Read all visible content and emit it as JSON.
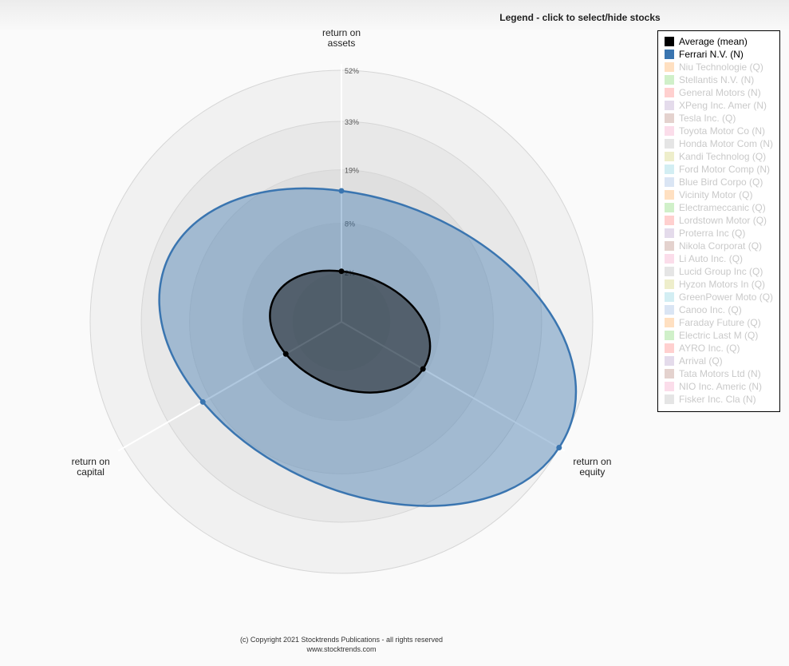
{
  "chart_data": {
    "type": "radar",
    "legend_title": "Legend - click to select/hide stocks",
    "categories": [
      "return on assets",
      "return on equity",
      "return on capital"
    ],
    "rlim": [
      0,
      52
    ],
    "rscale": "sqrt",
    "rticks": [
      {
        "value": 2,
        "label": "2%"
      },
      {
        "value": 8,
        "label": "8%"
      },
      {
        "value": 19,
        "label": "19%"
      },
      {
        "value": 33,
        "label": "33%"
      },
      {
        "value": 52,
        "label": "52%"
      }
    ],
    "series": [
      {
        "name": "Average (mean)",
        "color": "#000000",
        "visible": true,
        "values": [
          2.1,
          7.3,
          3.4
        ]
      },
      {
        "name": "Ferrari N.V. (N)",
        "color": "#3a75b0",
        "visible": true,
        "values": [
          14.1,
          52,
          21.1
        ]
      },
      {
        "name": "Niu Technologie (Q)",
        "color": "#ffbb78",
        "visible": false
      },
      {
        "name": "Stellantis N.V. (N)",
        "color": "#98df8a",
        "visible": false
      },
      {
        "name": "General Motors (N)",
        "color": "#ff9896",
        "visible": false
      },
      {
        "name": "XPeng Inc. Amer (N)",
        "color": "#c5b0d5",
        "visible": false
      },
      {
        "name": "Tesla Inc. (Q)",
        "color": "#c49c94",
        "visible": false
      },
      {
        "name": "Toyota Motor Co (N)",
        "color": "#f7b6d2",
        "visible": false
      },
      {
        "name": "Honda Motor Com (N)",
        "color": "#c7c7c7",
        "visible": false
      },
      {
        "name": "Kandi Technolog (Q)",
        "color": "#dbdb8d",
        "visible": false
      },
      {
        "name": "Ford Motor Comp (N)",
        "color": "#9edae5",
        "visible": false
      },
      {
        "name": "Blue Bird Corpo (Q)",
        "color": "#aec7e8",
        "visible": false
      },
      {
        "name": "Vicinity Motor (Q)",
        "color": "#ffbb78",
        "visible": false
      },
      {
        "name": "Electrameccanic (Q)",
        "color": "#98df8a",
        "visible": false
      },
      {
        "name": "Lordstown Motor (Q)",
        "color": "#ff9896",
        "visible": false
      },
      {
        "name": "Proterra Inc (Q)",
        "color": "#c5b0d5",
        "visible": false
      },
      {
        "name": "Nikola Corporat (Q)",
        "color": "#c49c94",
        "visible": false
      },
      {
        "name": "Li Auto Inc. (Q)",
        "color": "#f7b6d2",
        "visible": false
      },
      {
        "name": "Lucid Group Inc (Q)",
        "color": "#c7c7c7",
        "visible": false
      },
      {
        "name": "Hyzon Motors In (Q)",
        "color": "#dbdb8d",
        "visible": false
      },
      {
        "name": "GreenPower Moto (Q)",
        "color": "#9edae5",
        "visible": false
      },
      {
        "name": "Canoo Inc. (Q)",
        "color": "#aec7e8",
        "visible": false
      },
      {
        "name": "Faraday Future (Q)",
        "color": "#ffbb78",
        "visible": false
      },
      {
        "name": "Electric Last M (Q)",
        "color": "#98df8a",
        "visible": false
      },
      {
        "name": "AYRO Inc. (Q)",
        "color": "#ff9896",
        "visible": false
      },
      {
        "name": "Arrival (Q)",
        "color": "#c5b0d5",
        "visible": false
      },
      {
        "name": "Tata Motors Ltd (N)",
        "color": "#c49c94",
        "visible": false
      },
      {
        "name": "NIO Inc. Americ (N)",
        "color": "#f7b6d2",
        "visible": false
      },
      {
        "name": "Fisker Inc. Cla (N)",
        "color": "#c7c7c7",
        "visible": false
      }
    ],
    "footer": [
      "(c) Copyright 2021 Stocktrends Publications - all rights reserved",
      "www.stocktrends.com"
    ]
  }
}
